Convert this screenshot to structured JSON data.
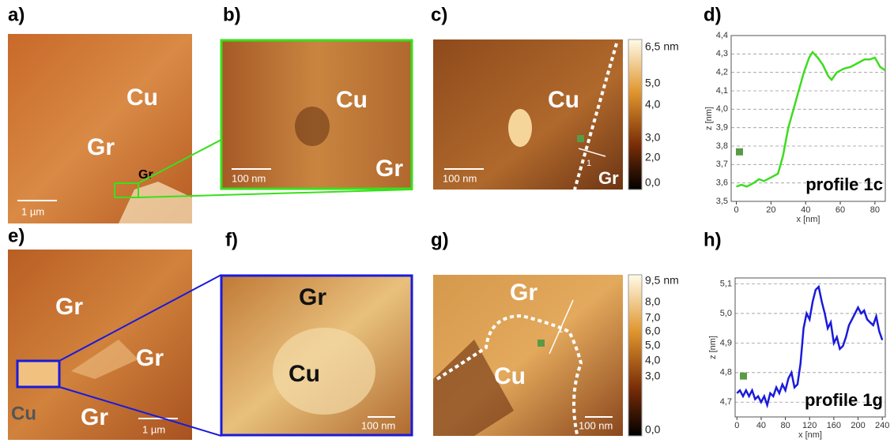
{
  "panels": {
    "a": {
      "label": "a)",
      "texts": [
        "Cu",
        "Gr",
        "Gr"
      ],
      "scale_bar": "1 µm"
    },
    "b": {
      "label": "b)",
      "texts": [
        "Cu",
        "Gr"
      ],
      "scale_bar": "100 nm"
    },
    "c": {
      "label": "c)",
      "texts": [
        "Cu",
        "Gr",
        "1"
      ],
      "scale_bar": "100 nm",
      "colorbar": [
        "6,5 nm",
        "5,0",
        "4,0",
        "3,0",
        "2,0",
        "0,0"
      ]
    },
    "d": {
      "label": "d)"
    },
    "e": {
      "label": "e)",
      "texts": [
        "Gr",
        "Gr",
        "Cu",
        "Gr"
      ],
      "scale_bar": "1 µm"
    },
    "f": {
      "label": "f)",
      "texts": [
        "Gr",
        "Cu"
      ],
      "scale_bar": "100 nm"
    },
    "g": {
      "label": "g)",
      "texts": [
        "Gr",
        "Cu",
        "1"
      ],
      "scale_bar": "100 nm",
      "colorbar": [
        "9,5 nm",
        "8,0",
        "7,0",
        "6,0",
        "5,0",
        "4,0",
        "3,0",
        "0,0"
      ]
    },
    "h": {
      "label": "h)"
    }
  },
  "chart_data": [
    {
      "type": "line",
      "annotation": "profile 1c",
      "x_label": "x [nm]",
      "y_label": "z [nm]",
      "color": "#3ddc1f",
      "x": [
        0,
        3,
        6,
        10,
        13,
        16,
        20,
        24,
        27,
        30,
        33,
        36,
        39,
        42,
        44,
        47,
        50,
        53,
        55,
        58,
        62,
        66,
        70,
        74,
        77,
        80,
        83,
        86
      ],
      "values": [
        3.58,
        3.59,
        3.58,
        3.6,
        3.62,
        3.61,
        3.63,
        3.65,
        3.75,
        3.9,
        4.0,
        4.1,
        4.2,
        4.28,
        4.31,
        4.28,
        4.24,
        4.18,
        4.16,
        4.2,
        4.22,
        4.23,
        4.25,
        4.27,
        4.27,
        4.28,
        4.23,
        4.21
      ],
      "xlim": [
        -3,
        86
      ],
      "xticks": [
        0,
        20,
        40,
        60,
        80
      ],
      "ylim": [
        3.5,
        4.4
      ],
      "yticks": [
        {
          "value": 3.5,
          "label": "3,5"
        },
        {
          "value": 3.6,
          "label": "3,6"
        },
        {
          "value": 3.7,
          "label": "3,7"
        },
        {
          "value": 3.8,
          "label": "3,8"
        },
        {
          "value": 3.9,
          "label": "3,9"
        },
        {
          "value": 4.0,
          "label": "4,0"
        },
        {
          "value": 4.1,
          "label": "4,1"
        },
        {
          "value": 4.2,
          "label": "4,2"
        },
        {
          "value": 4.3,
          "label": "4,3"
        },
        {
          "value": 4.4,
          "label": "4,4"
        }
      ],
      "grid": true
    },
    {
      "type": "line",
      "annotation": "profile 1g",
      "x_label": "x [nm]",
      "y_label": "z [nm]",
      "color": "#1a1adc",
      "x": [
        0,
        5,
        10,
        15,
        20,
        25,
        30,
        35,
        40,
        45,
        50,
        55,
        60,
        65,
        70,
        75,
        80,
        85,
        90,
        95,
        100,
        105,
        110,
        115,
        120,
        125,
        130,
        135,
        140,
        145,
        150,
        155,
        160,
        165,
        170,
        175,
        180,
        185,
        190,
        195,
        200,
        205,
        210,
        215,
        220,
        225,
        230,
        235,
        240
      ],
      "values": [
        4.73,
        4.74,
        4.72,
        4.74,
        4.72,
        4.74,
        4.71,
        4.72,
        4.7,
        4.72,
        4.69,
        4.73,
        4.72,
        4.75,
        4.73,
        4.76,
        4.74,
        4.78,
        4.8,
        4.75,
        4.76,
        4.83,
        4.95,
        5.0,
        4.98,
        5.04,
        5.08,
        5.09,
        5.04,
        5.0,
        4.95,
        4.97,
        4.9,
        4.92,
        4.88,
        4.89,
        4.92,
        4.96,
        4.98,
        5.0,
        5.02,
        5.0,
        5.01,
        4.98,
        4.97,
        4.96,
        4.99,
        4.94,
        4.91
      ],
      "xlim": [
        -3,
        245
      ],
      "xticks": [
        0,
        40,
        80,
        120,
        160,
        200,
        240
      ],
      "ylim": [
        4.65,
        5.12
      ],
      "yticks": [
        {
          "value": 4.7,
          "label": "4,7"
        },
        {
          "value": 4.8,
          "label": "4,8"
        },
        {
          "value": 4.9,
          "label": "4,9"
        },
        {
          "value": 5.0,
          "label": "5,0"
        },
        {
          "value": 5.1,
          "label": "5,1"
        }
      ],
      "grid": true
    }
  ]
}
